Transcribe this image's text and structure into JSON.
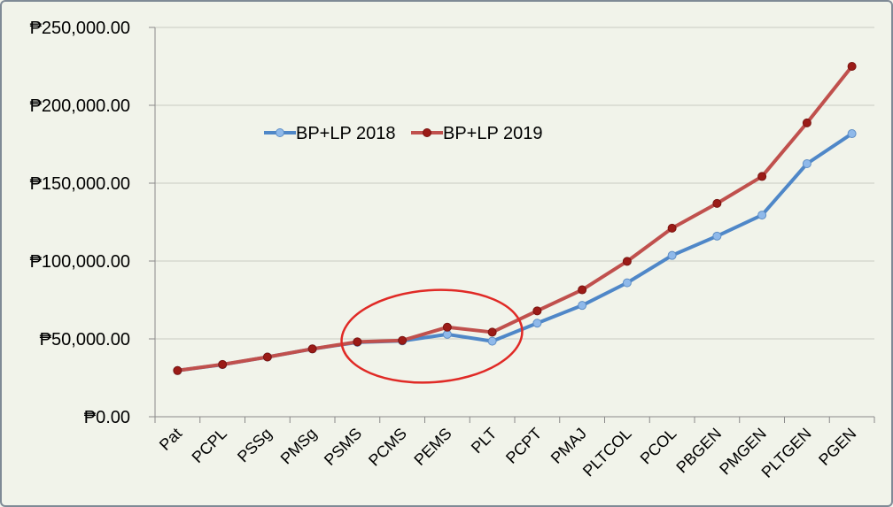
{
  "chart_data": {
    "type": "line",
    "categories": [
      "Pat",
      "PCPL",
      "PSSg",
      "PMSg",
      "PSMS",
      "PCMS",
      "PEMS",
      "PLT",
      "PCPT",
      "PMAJ",
      "PLTCOL",
      "PCOL",
      "PBGEN",
      "PMGEN",
      "PLTGEN",
      "PGEN"
    ],
    "series": [
      {
        "name": "BP+LP 2018",
        "color": "#4f87c8",
        "marker_color": "#8fb9ea",
        "values": [
          29668,
          33470,
          38366,
          43541,
          47800,
          48700,
          52900,
          48500,
          60100,
          71500,
          86000,
          103600,
          116000,
          129500,
          162500,
          181800
        ]
      },
      {
        "name": "BP+LP 2019",
        "color": "#c0504d",
        "marker_color": "#9b1b17",
        "values": [
          29668,
          33575,
          38366,
          43581,
          48100,
          49000,
          57500,
          54300,
          68000,
          81500,
          99800,
          121100,
          137000,
          154300,
          188700,
          225000
        ]
      }
    ],
    "y_ticks": [
      "₱0.00",
      "₱50,000.00",
      "₱100,000.00",
      "₱150,000.00",
      "₱200,000.00",
      "₱250,000.00"
    ],
    "ylim": [
      0,
      250000
    ],
    "grid": true,
    "legend_position": "top-left",
    "annotation": "red ellipse highlighting PSMS–PLT",
    "title": "",
    "xlabel": "",
    "ylabel": ""
  }
}
